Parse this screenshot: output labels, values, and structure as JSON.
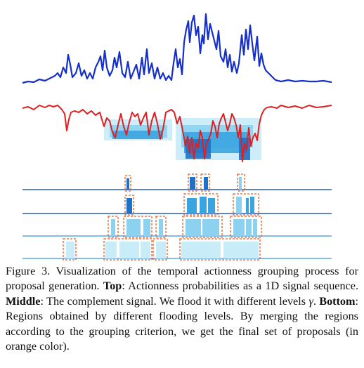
{
  "figure": {
    "caption": {
      "prefix": "Figure 3. Visualization of the temporal actionness grouping process for proposal generation.",
      "top_label": "Top",
      "top_text": ": Actionness probabilities as a 1D signal sequence.",
      "middle_label": "Middle",
      "middle_text": ": The complement signal. We flood it with different levels",
      "gamma": "γ",
      "bottom_label": "Bottom",
      "bottom_text": ": Regions obtained by different flooding levels. By merging the regions according to the grouping criterion, we get the final set of proposals (in orange color)."
    },
    "colors": {
      "top_signal": "#1530c8",
      "complement_signal": "#e02020",
      "flood_light": "#c8ecf8",
      "flood_mid": "#8cd2f0",
      "flood_dark": "#3aa4e0",
      "flood_deep": "#1e70c8",
      "level_line_dark": "#2a5cb0",
      "level_line_light": "#5aa8e0",
      "proposal_box": "#e8602a"
    },
    "icons": [
      "figure-plot"
    ]
  }
}
